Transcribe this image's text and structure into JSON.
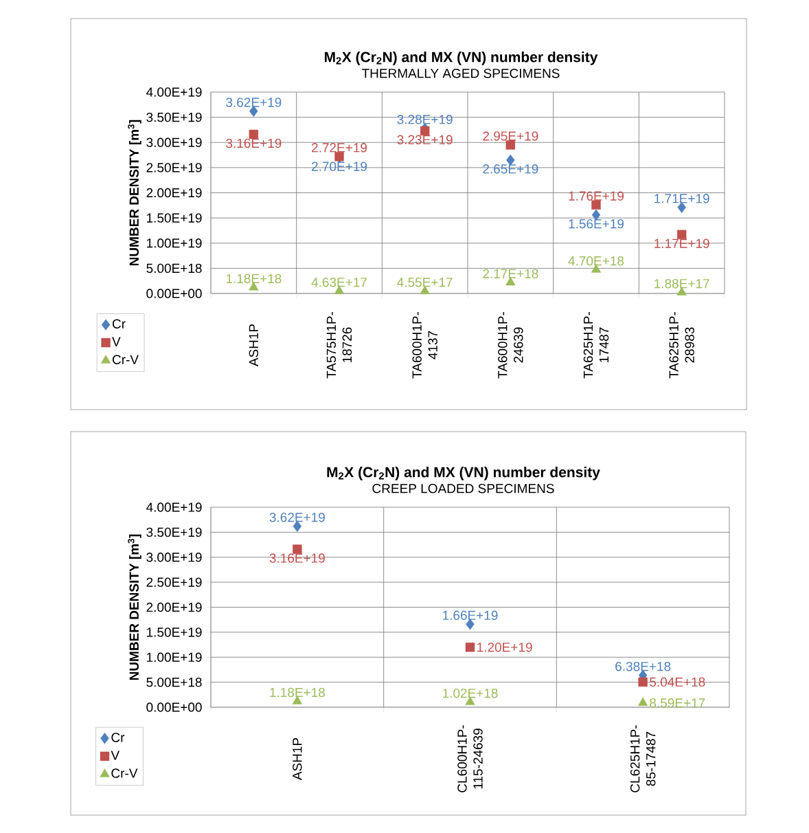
{
  "chart_data": [
    {
      "type": "scatter",
      "title": "M$_{2}$X (Cr$_{2}$N) and MX (VN) number density",
      "subtitle": "THERMALLY AGED SPECIMENS",
      "ylabel": "NUMBER DENSITY [m$^{3}$]",
      "categories": [
        "ASH1P",
        "TA575H1P-18726",
        "TA600H1P-4137",
        "TA600H1P-24639",
        "TA625H1P-17487",
        "TA625H1P-28983"
      ],
      "series": [
        {
          "name": "Cr",
          "color": "#4f81bd",
          "marker": "diamond",
          "values": [
            3.62e+19,
            2.7e+19,
            3.28e+19,
            2.65e+19,
            1.56e+19,
            1.71e+19
          ],
          "value_labels": [
            "3.62E+19",
            "2.70E+19",
            "3.28E+19",
            "2.65E+19",
            "1.56E+19",
            "1.71E+19"
          ]
        },
        {
          "name": "V",
          "color": "#c0504d",
          "marker": "square",
          "values": [
            3.16e+19,
            2.72e+19,
            3.23e+19,
            2.95e+19,
            1.76e+19,
            1.17e+19
          ],
          "value_labels": [
            "3.16E+19",
            "2.72E+19",
            "3.23E+19",
            "2.95E+19",
            "1.76E+19",
            "1.17E+19"
          ]
        },
        {
          "name": "Cr-V",
          "color": "#9bbb59",
          "marker": "triangle",
          "values": [
            1.18e+18,
            4.63e+17,
            4.55e+17,
            2.17e+18,
            4.7e+18,
            1.88e+17
          ],
          "value_labels": [
            "1.18E+18",
            "4.63E+17",
            "4.55E+17",
            "2.17E+18",
            "4.70E+18",
            "1.88E+17"
          ]
        }
      ],
      "ylim": [
        0,
        4e+19
      ],
      "yticks": [
        {
          "value": 0,
          "label": "0.00E+00"
        },
        {
          "value": 5e+18,
          "label": "5.00E+18"
        },
        {
          "value": 1e+19,
          "label": "1.00E+19"
        },
        {
          "value": 1.5e+19,
          "label": "1.50E+19"
        },
        {
          "value": 2e+19,
          "label": "2.00E+19"
        },
        {
          "value": 2.5e+19,
          "label": "2.50E+19"
        },
        {
          "value": 3e+19,
          "label": "3.00E+19"
        },
        {
          "value": 3.5e+19,
          "label": "3.50E+19"
        },
        {
          "value": 4e+19,
          "label": "4.00E+19"
        }
      ],
      "grid": true,
      "legend": "bottom left"
    },
    {
      "type": "scatter",
      "title": "M$_{2}$X (Cr$_{2}$N) and MX (VN) number density",
      "subtitle": "CREEP LOADED SPECIMENS",
      "ylabel": "NUMBER DENSITY [m$^{3}$]",
      "categories": [
        "ASH1P",
        "CL600H1P-115-24639",
        "CL625H1P-85-17487"
      ],
      "series": [
        {
          "name": "Cr",
          "color": "#4f81bd",
          "marker": "diamond",
          "values": [
            3.62e+19,
            1.66e+19,
            6.38e+18
          ],
          "value_labels": [
            "3.62E+19",
            "1.66E+19",
            "6.38E+18"
          ]
        },
        {
          "name": "V",
          "color": "#c0504d",
          "marker": "square",
          "values": [
            3.16e+19,
            1.2e+19,
            5.04e+18
          ],
          "value_labels": [
            "3.16E+19",
            "1.20E+19",
            "5.04E+18"
          ]
        },
        {
          "name": "Cr-V",
          "color": "#9bbb59",
          "marker": "triangle",
          "values": [
            1.18e+18,
            1.02e+18,
            8.59e+17
          ],
          "value_labels": [
            "1.18E+18",
            "1.02E+18",
            "8.59E+17"
          ]
        }
      ],
      "ylim": [
        0,
        4e+19
      ],
      "yticks": [
        {
          "value": 0,
          "label": "0.00E+00"
        },
        {
          "value": 5e+18,
          "label": "5.00E+18"
        },
        {
          "value": 1e+19,
          "label": "1.00E+19"
        },
        {
          "value": 1.5e+19,
          "label": "1.50E+19"
        },
        {
          "value": 2e+19,
          "label": "2.00E+19"
        },
        {
          "value": 2.5e+19,
          "label": "2.50E+19"
        },
        {
          "value": 3e+19,
          "label": "3.00E+19"
        },
        {
          "value": 3.5e+19,
          "label": "3.50E+19"
        },
        {
          "value": 4e+19,
          "label": "4.00E+19"
        }
      ],
      "grid": true,
      "legend": "bottom left"
    }
  ]
}
